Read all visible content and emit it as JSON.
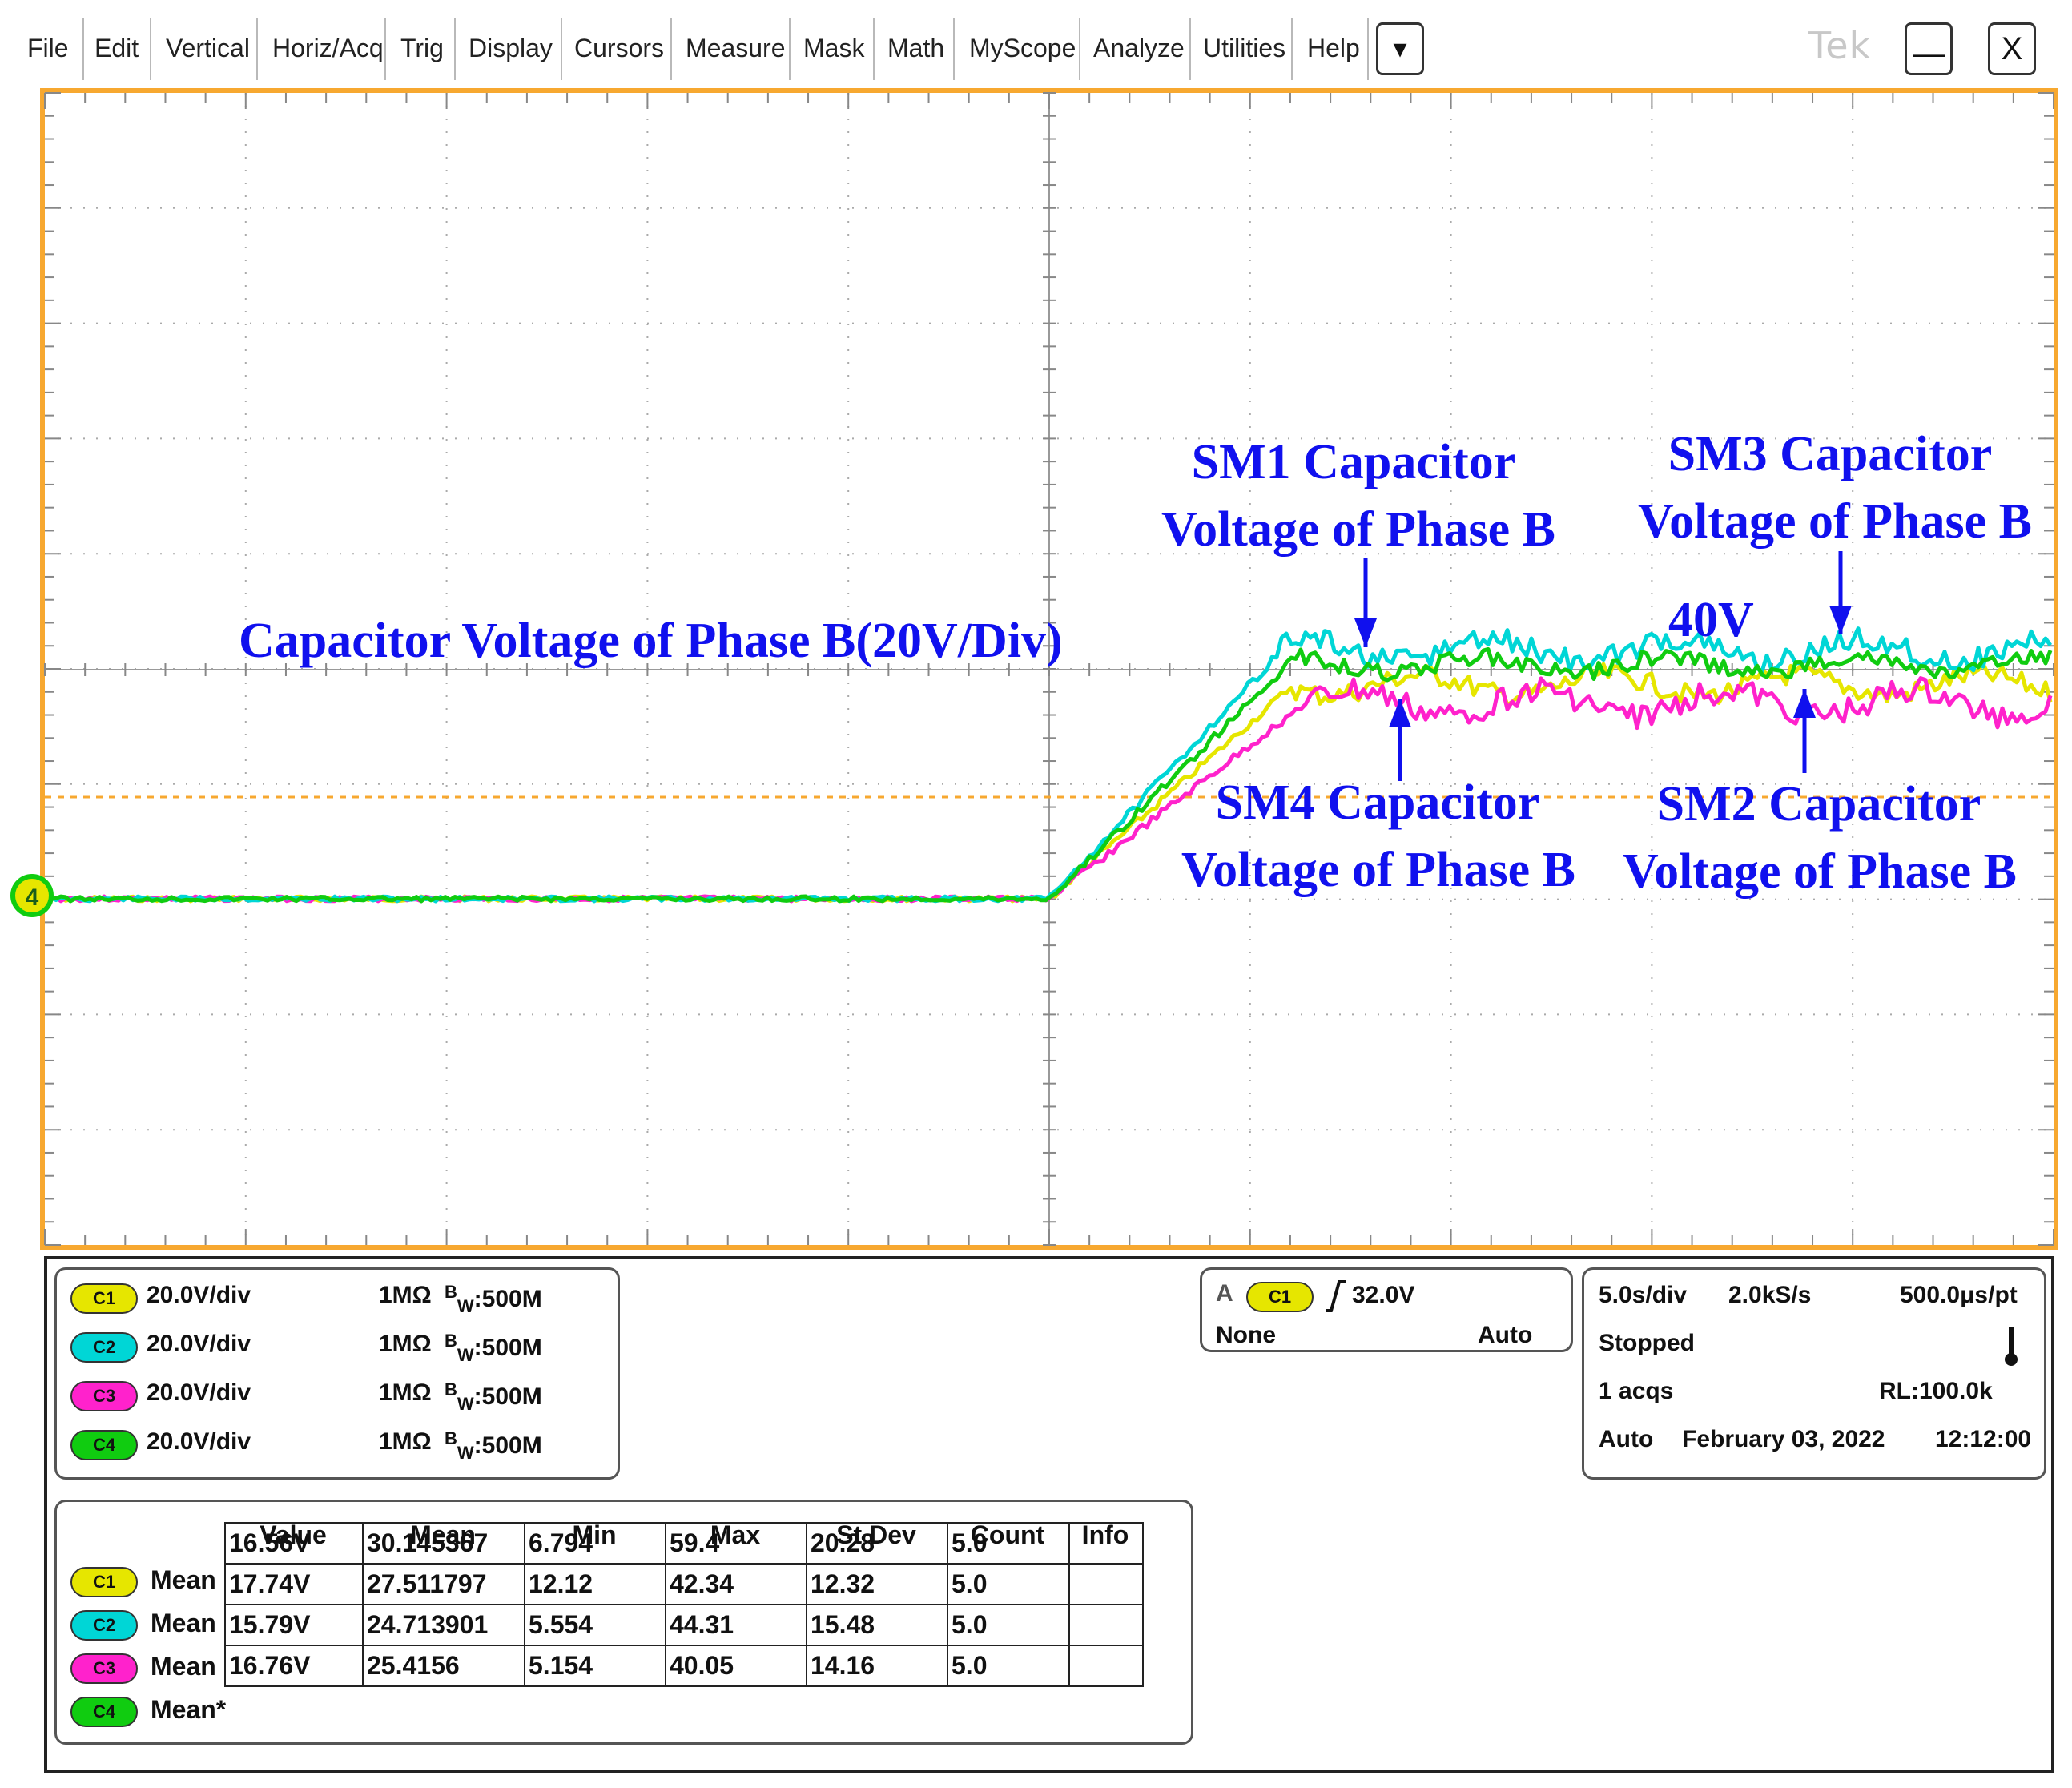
{
  "menu": {
    "items": [
      "File",
      "Edit",
      "Vertical",
      "Horiz/Acq",
      "Trig",
      "Display",
      "Cursors",
      "Measure",
      "Mask",
      "Math",
      "MyScope",
      "Analyze",
      "Utilities",
      "Help"
    ],
    "dropdown_symbol": "▾",
    "logo": "Tek",
    "minimize_symbol": "—",
    "close_symbol": "X"
  },
  "colors": {
    "graticule_border": "#f7a830",
    "ch1": "#e6e600",
    "ch2": "#00d6d6",
    "ch3": "#ff22cc",
    "ch4": "#10cc10",
    "annotation": "#1010ee"
  },
  "display": {
    "ground_marker_label": "4",
    "annotations": {
      "title": "Capacitor Voltage of Phase B(20V/Div)",
      "sm1_line1": "SM1 Capacitor",
      "sm1_line2": "Voltage of Phase B",
      "sm3_line1": "SM3 Capacitor",
      "sm3_line2": "Voltage of Phase B",
      "level_40v": "40V",
      "sm4_line1": "SM4 Capacitor",
      "sm4_line2": "Voltage of Phase B",
      "sm2_line1": "SM2 Capacitor",
      "sm2_line2": "Voltage of Phase B"
    }
  },
  "channels": [
    {
      "badge": "C1",
      "scale": "20.0V/div",
      "impedance": "1MΩ",
      "bw_prefix": "B",
      "bw_sub": "W",
      "bw_value": ":500M"
    },
    {
      "badge": "C2",
      "scale": "20.0V/div",
      "impedance": "1MΩ",
      "bw_prefix": "B",
      "bw_sub": "W",
      "bw_value": ":500M"
    },
    {
      "badge": "C3",
      "scale": "20.0V/div",
      "impedance": "1MΩ",
      "bw_prefix": "B",
      "bw_sub": "W",
      "bw_value": ":500M"
    },
    {
      "badge": "C4",
      "scale": "20.0V/div",
      "impedance": "1MΩ",
      "bw_prefix": "B",
      "bw_sub": "W",
      "bw_value": ":500M"
    }
  ],
  "trigger": {
    "label_a": "A",
    "source": "C1",
    "level": "32.0V",
    "coupling": "None",
    "mode": "Auto"
  },
  "acquisition": {
    "timebase": "5.0s/div",
    "sample_rate": "2.0kS/s",
    "resolution": "500.0μs/pt",
    "state": "Stopped",
    "acqs": "1 acqs",
    "record_length": "RL:100.0k",
    "mode": "Auto",
    "date": "February 03, 2022",
    "time": "12:12:00"
  },
  "measurements": {
    "headers": [
      "Value",
      "Mean",
      "Min",
      "Max",
      "St Dev",
      "Count",
      "Info"
    ],
    "rows": [
      {
        "badge": "C1",
        "label": "Mean",
        "value": "16.56V",
        "mean": "30.145367",
        "min": "6.794",
        "max": "59.4",
        "stdev": "20.28",
        "count": "5.0",
        "info": ""
      },
      {
        "badge": "C2",
        "label": "Mean",
        "value": "17.74V",
        "mean": "27.511797",
        "min": "12.12",
        "max": "42.34",
        "stdev": "12.32",
        "count": "5.0",
        "info": ""
      },
      {
        "badge": "C3",
        "label": "Mean",
        "value": "15.79V",
        "mean": "24.713901",
        "min": "5.554",
        "max": "44.31",
        "stdev": "15.48",
        "count": "5.0",
        "info": ""
      },
      {
        "badge": "C4",
        "label": "Mean*",
        "value": "16.76V",
        "mean": "25.4156",
        "min": "5.154",
        "max": "40.05",
        "stdev": "14.16",
        "count": "5.0",
        "info": ""
      }
    ]
  }
}
